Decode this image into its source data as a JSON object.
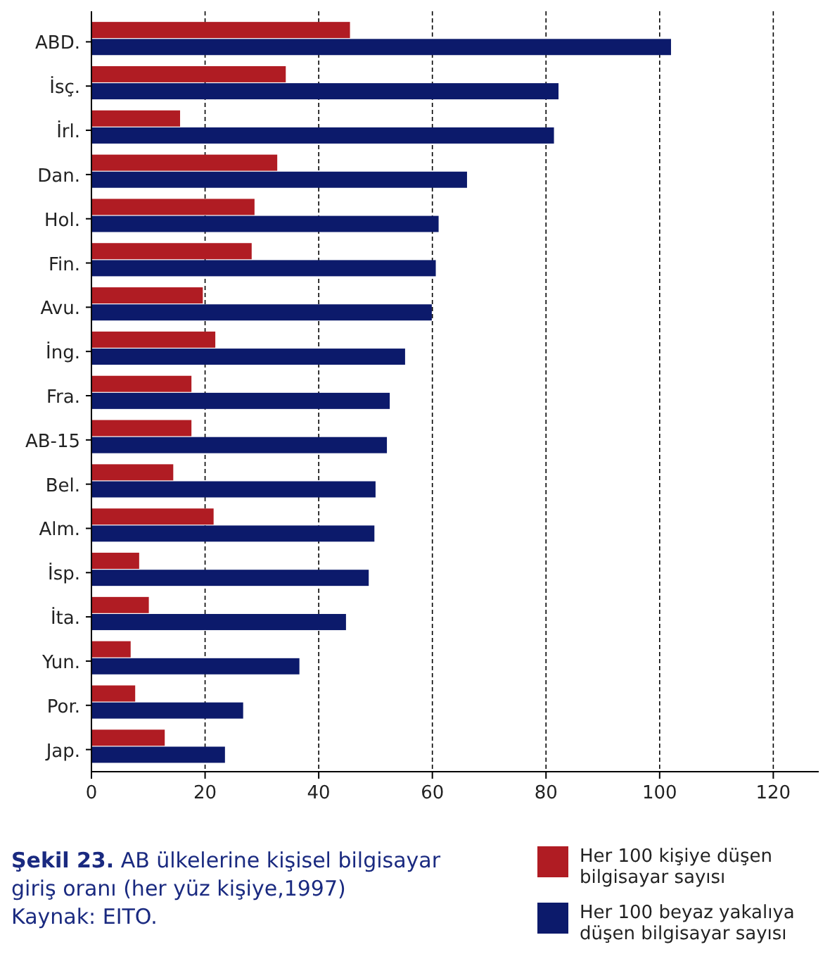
{
  "chart_data": {
    "type": "bar",
    "orientation": "horizontal",
    "title": "Şekil 23.",
    "subtitle": "AB ülkelerine kişisel bilgisayar giriş oranı (her yüz kişiye,1997)",
    "annotations": [
      "Kaynak: EITO."
    ],
    "categories": [
      "ABD.",
      "İsç.",
      "İrl.",
      "Dan.",
      "Hol.",
      "Fin.",
      "Avu.",
      "İng.",
      "Fra.",
      "AB-15",
      "Bel.",
      "Alm.",
      "İsp.",
      "İta.",
      "Yun.",
      "Por.",
      "Jap."
    ],
    "series": [
      {
        "name": "Her 100 kişiye düşen bilgisayar sayısı",
        "color": "#b01c23",
        "values": [
          45.5,
          34.2,
          15.6,
          32.7,
          28.7,
          28.2,
          19.6,
          21.8,
          17.6,
          17.6,
          14.4,
          21.5,
          8.4,
          10.1,
          6.9,
          7.7,
          12.9
        ]
      },
      {
        "name": "Her 100 beyaz yakalıya düşen bilgisayar sayısı",
        "color": "#0c1a6b",
        "values": [
          102,
          82.2,
          81.4,
          66.1,
          61.1,
          60.6,
          59.9,
          55.2,
          52.5,
          52,
          50,
          49.8,
          48.8,
          44.8,
          36.6,
          26.7,
          23.5
        ]
      }
    ],
    "xlim": [
      0,
      128
    ],
    "xticks": [
      0,
      20,
      40,
      60,
      80,
      100,
      120
    ],
    "grid": "x",
    "legend": "bottom right"
  }
}
